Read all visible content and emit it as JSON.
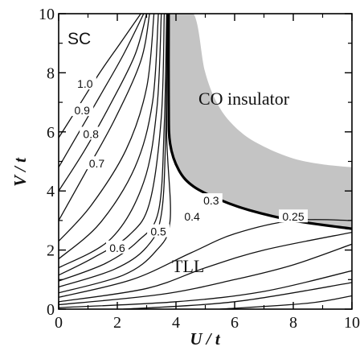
{
  "chart_data": {
    "type": "contour",
    "xlabel": "U / t",
    "ylabel": "V / t",
    "xlim": [
      0,
      10
    ],
    "ylim": [
      0,
      10
    ],
    "x_ticks": [
      "0",
      "2",
      "4",
      "6",
      "8",
      "10"
    ],
    "y_ticks": [
      "0",
      "2",
      "4",
      "6",
      "8",
      "10"
    ],
    "shaded_region": {
      "label": "CO insulator",
      "color": "#c4c4c4",
      "boundary": [
        [
          3.75,
          10
        ],
        [
          3.75,
          7
        ],
        [
          3.8,
          5.6
        ],
        [
          4.1,
          4.7
        ],
        [
          4.6,
          4.15
        ],
        [
          5.5,
          3.7
        ],
        [
          6.5,
          3.35
        ],
        [
          8,
          3.0
        ],
        [
          10,
          2.72
        ]
      ],
      "upper_edge": [
        [
          3.75,
          10
        ],
        [
          4.6,
          10
        ],
        [
          5.0,
          8.0
        ],
        [
          5.5,
          6.8
        ],
        [
          6.2,
          6.0
        ],
        [
          7.0,
          5.5
        ],
        [
          8.0,
          5.1
        ],
        [
          9.0,
          4.9
        ],
        [
          10,
          4.8
        ]
      ]
    },
    "phase_boundary": {
      "level": "0.25",
      "points": [
        [
          3.75,
          10
        ],
        [
          3.75,
          7
        ],
        [
          3.8,
          5.6
        ],
        [
          4.1,
          4.7
        ],
        [
          4.6,
          4.15
        ],
        [
          5.5,
          3.7
        ],
        [
          6.5,
          3.35
        ],
        [
          8,
          3.0
        ],
        [
          10,
          2.72
        ]
      ]
    },
    "contours": [
      {
        "level": "1.0",
        "points": [
          [
            0,
            5.8
          ],
          [
            0.7,
            6.9
          ],
          [
            1.4,
            8.0
          ],
          [
            2.1,
            9.0
          ],
          [
            2.8,
            10
          ]
        ]
      },
      {
        "level": "0.9",
        "points": [
          [
            0,
            4.8
          ],
          [
            0.7,
            6.0
          ],
          [
            1.4,
            7.2
          ],
          [
            2.2,
            8.6
          ],
          [
            2.9,
            10
          ]
        ]
      },
      {
        "level": "0.8",
        "points": [
          [
            0,
            4.0
          ],
          [
            0.9,
            5.4
          ],
          [
            1.8,
            7.0
          ],
          [
            2.6,
            8.6
          ],
          [
            3.0,
            10
          ]
        ]
      },
      {
        "level": "0.7",
        "points": [
          [
            0,
            3.0
          ],
          [
            0.9,
            4.6
          ],
          [
            1.9,
            6.4
          ],
          [
            2.8,
            8.4
          ],
          [
            3.1,
            10
          ]
        ]
      },
      {
        "level": "",
        "points": [
          [
            0,
            2.3
          ],
          [
            1.1,
            3.5
          ],
          [
            2.3,
            5.4
          ],
          [
            3.0,
            7.5
          ],
          [
            3.25,
            10
          ]
        ]
      },
      {
        "level": "",
        "points": [
          [
            0,
            1.7
          ],
          [
            1.4,
            2.9
          ],
          [
            2.6,
            4.8
          ],
          [
            3.2,
            7.0
          ],
          [
            3.4,
            10
          ]
        ]
      },
      {
        "level": "",
        "points": [
          [
            0,
            1.4
          ],
          [
            1.8,
            2.4
          ],
          [
            2.9,
            4.3
          ],
          [
            3.35,
            6.8
          ],
          [
            3.5,
            10
          ]
        ]
      },
      {
        "level": "0.6",
        "points": [
          [
            0,
            1.15
          ],
          [
            1.2,
            1.75
          ],
          [
            2.4,
            2.5
          ],
          [
            3.1,
            3.6
          ],
          [
            3.5,
            6.5
          ],
          [
            3.6,
            10
          ]
        ]
      },
      {
        "level": "0.5",
        "points": [
          [
            0,
            0.95
          ],
          [
            1.6,
            1.55
          ],
          [
            2.7,
            2.3
          ],
          [
            3.4,
            3.3
          ],
          [
            3.6,
            6.2
          ],
          [
            3.68,
            10
          ]
        ]
      },
      {
        "level": "0.4",
        "points": [
          [
            0,
            0.75
          ],
          [
            1.9,
            1.35
          ],
          [
            3.0,
            2.1
          ],
          [
            3.5,
            3.2
          ],
          [
            3.65,
            6.0
          ],
          [
            3.7,
            10
          ]
        ]
      },
      {
        "level": "0.3",
        "points": [
          [
            0,
            0.55
          ],
          [
            2.2,
            1.15
          ],
          [
            3.3,
            1.95
          ],
          [
            3.8,
            3.0
          ],
          [
            3.68,
            6.0
          ],
          [
            3.72,
            10
          ]
        ]
      },
      {
        "level": "",
        "points": [
          [
            0,
            0.4
          ],
          [
            2.5,
            1.0
          ],
          [
            4.5,
            1.9
          ],
          [
            6.0,
            2.55
          ],
          [
            8,
            3.0
          ],
          [
            10,
            3.0
          ]
        ]
      },
      {
        "level": "",
        "points": [
          [
            0,
            0.25
          ],
          [
            3,
            0.7
          ],
          [
            5,
            1.4
          ],
          [
            7,
            2.0
          ],
          [
            10,
            2.6
          ]
        ]
      },
      {
        "level": "",
        "points": [
          [
            0,
            0.15
          ],
          [
            3.5,
            0.5
          ],
          [
            6,
            1.0
          ],
          [
            8,
            1.5
          ],
          [
            10,
            2.2
          ]
        ]
      },
      {
        "level": "",
        "points": [
          [
            0,
            0.05
          ],
          [
            4,
            0.25
          ],
          [
            7,
            0.6
          ],
          [
            10,
            1.3
          ]
        ]
      },
      {
        "level": "",
        "points": [
          [
            2.2,
            0
          ],
          [
            6,
            0.25
          ],
          [
            10,
            0.9
          ]
        ]
      },
      {
        "level": "",
        "points": [
          [
            5.5,
            0
          ],
          [
            8.5,
            0.2
          ],
          [
            10,
            0.45
          ]
        ]
      }
    ],
    "contour_labels": [
      {
        "text": "1.0",
        "x": 0.9,
        "y": 7.6
      },
      {
        "text": "0.9",
        "x": 0.8,
        "y": 6.7
      },
      {
        "text": "0.8",
        "x": 1.1,
        "y": 5.9
      },
      {
        "text": "0.7",
        "x": 1.3,
        "y": 4.9
      },
      {
        "text": "0.6",
        "x": 2.0,
        "y": 2.05
      },
      {
        "text": "0.5",
        "x": 3.4,
        "y": 2.6
      },
      {
        "text": "0.4",
        "x": 4.55,
        "y": 3.1
      },
      {
        "text": "0.3",
        "x": 5.2,
        "y": 3.65
      },
      {
        "text": "0.25",
        "x": 8.0,
        "y": 3.1
      }
    ],
    "annotations": [
      "SC",
      "CO insulator",
      "TLL"
    ]
  }
}
